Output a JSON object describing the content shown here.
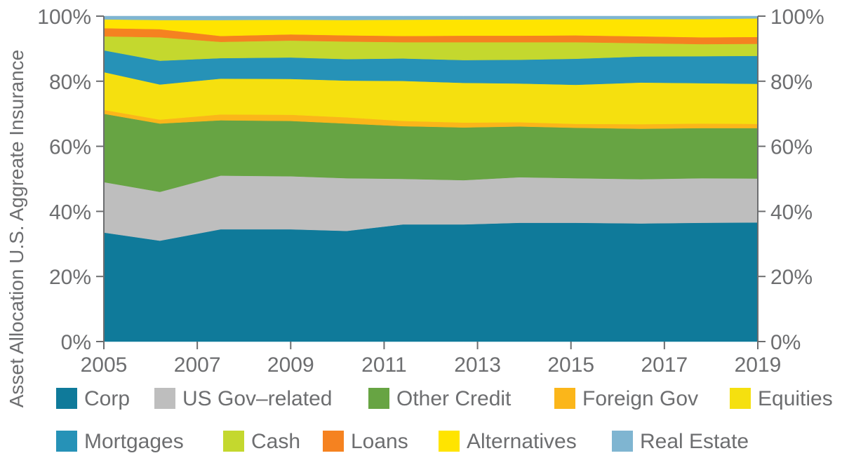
{
  "chart_data": {
    "type": "area",
    "stacked": true,
    "percent": true,
    "title": "",
    "ylabel": "Asset Allocation U.S. Aggreate Insurance",
    "xlabel": "",
    "ylim": [
      0,
      100
    ],
    "yticks": [
      "0%",
      "20%",
      "40%",
      "60%",
      "80%",
      "100%"
    ],
    "xticks": [
      "2005",
      "2007",
      "2009",
      "2011",
      "2013",
      "2015",
      "2017",
      "2019"
    ],
    "x": [
      2005,
      2006.2,
      2007.5,
      2009,
      2010.2,
      2011.4,
      2012.7,
      2013.9,
      2015.1,
      2016.5,
      2017.8,
      2019
    ],
    "grid": false,
    "legend_position": "bottom",
    "series": [
      {
        "name": "Corp",
        "color": "#0f7a9a",
        "values": [
          33.5,
          31.0,
          34.5,
          34.5,
          34.0,
          36.0,
          36.0,
          36.5,
          36.5,
          36.3,
          36.5,
          36.6
        ]
      },
      {
        "name": "US Gov–related",
        "color": "#bebebe",
        "values": [
          15.5,
          15.0,
          16.5,
          16.3,
          16.2,
          14.0,
          13.6,
          14.0,
          13.7,
          13.6,
          13.7,
          13.5
        ]
      },
      {
        "name": "Other Credit",
        "color": "#67a443",
        "values": [
          21.0,
          21.0,
          17.0,
          17.0,
          16.8,
          16.2,
          16.2,
          15.6,
          15.5,
          15.5,
          15.4,
          15.5
        ]
      },
      {
        "name": "Foreign Gov",
        "color": "#fbb61a",
        "values": [
          1.2,
          1.2,
          1.8,
          1.9,
          1.9,
          1.6,
          1.5,
          1.3,
          1.2,
          1.4,
          1.4,
          1.3
        ]
      },
      {
        "name": "Equities",
        "color": "#f5e00f",
        "values": [
          11.6,
          10.8,
          11.0,
          11.0,
          11.3,
          12.3,
          12.2,
          11.9,
          12.0,
          12.8,
          12.4,
          12.3
        ]
      },
      {
        "name": "Mortgages",
        "color": "#2692b7",
        "values": [
          6.7,
          7.3,
          6.3,
          6.6,
          6.6,
          6.9,
          7.0,
          7.3,
          8.0,
          8.0,
          8.3,
          8.6
        ]
      },
      {
        "name": "Cash",
        "color": "#c4d82e",
        "values": [
          4.3,
          7.2,
          5.0,
          5.2,
          5.4,
          5.0,
          5.5,
          5.4,
          5.1,
          4.1,
          3.7,
          3.7
        ]
      },
      {
        "name": "Loans",
        "color": "#f58220",
        "values": [
          2.5,
          2.5,
          1.8,
          1.9,
          1.9,
          1.9,
          2.0,
          2.0,
          2.1,
          2.1,
          2.1,
          2.1
        ]
      },
      {
        "name": "Alternatives",
        "color": "#ffe400",
        "values": [
          2.7,
          2.8,
          4.9,
          4.5,
          4.7,
          5.0,
          5.0,
          5.0,
          5.0,
          5.3,
          5.6,
          5.7
        ]
      },
      {
        "name": "Real Estate",
        "color": "#7fb5d1",
        "values": [
          1.0,
          1.2,
          1.2,
          1.1,
          1.2,
          1.1,
          1.0,
          1.0,
          0.9,
          0.9,
          0.9,
          0.7
        ]
      }
    ]
  }
}
